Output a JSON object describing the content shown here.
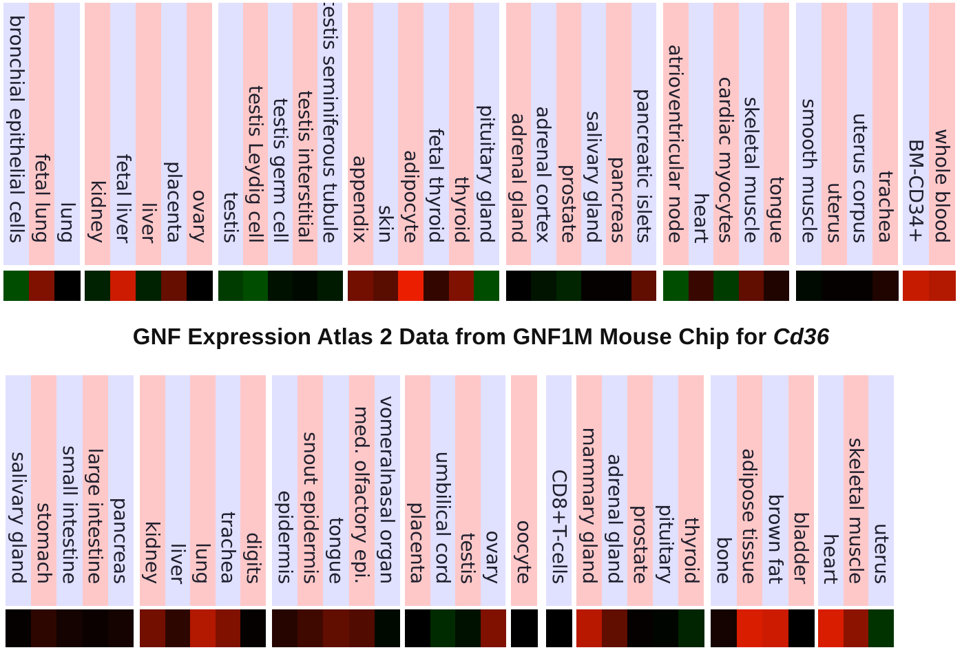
{
  "chart_data": {
    "type": "heatmap",
    "title": {
      "prefix": "GNF Expression Atlas 2 Data from GNF1M Mouse Chip for ",
      "gene": "Cd36"
    },
    "color_scale": {
      "low": "#00aa00",
      "mid": "#000000",
      "high": "#ff2200"
    },
    "column_colors": {
      "pink": "#ffc8c8",
      "blue": "#e0e0ff"
    },
    "rows": [
      {
        "groups": [
          {
            "tissues": [
              {
                "name": "bronchial epithelial cells",
                "value": -0.45
              },
              {
                "name": "fetal lung",
                "value": 0.5
              },
              {
                "name": "lung",
                "value": 0.0
              }
            ]
          },
          {
            "tissues": [
              {
                "name": "kidney",
                "value": -0.2
              },
              {
                "name": "fetal liver",
                "value": 0.8
              },
              {
                "name": "liver",
                "value": -0.2
              },
              {
                "name": "placenta",
                "value": 0.4
              },
              {
                "name": "ovary",
                "value": 0.0
              }
            ]
          },
          {
            "tissues": [
              {
                "name": "testis",
                "value": -0.35
              },
              {
                "name": "testis Leydig cell",
                "value": -0.45
              },
              {
                "name": "testis germ cell",
                "value": -0.1
              },
              {
                "name": "testis interstitial",
                "value": -0.05
              },
              {
                "name": "testis seminiferous tubule",
                "value": -0.15
              }
            ]
          },
          {
            "tissues": [
              {
                "name": "appendix",
                "value": 0.45
              },
              {
                "name": "skin",
                "value": 0.35
              },
              {
                "name": "adipocyte",
                "value": 0.92
              },
              {
                "name": "fetal thyroid",
                "value": 0.2
              },
              {
                "name": "thyroid",
                "value": 0.5
              },
              {
                "name": "pituitary gland",
                "value": -0.45
              }
            ]
          },
          {
            "tissues": [
              {
                "name": "adrenal gland",
                "value": 0.0
              },
              {
                "name": "adrenal cortex",
                "value": -0.12
              },
              {
                "name": "prostate",
                "value": -0.22
              },
              {
                "name": "salivary gland",
                "value": 0.02
              },
              {
                "name": "pancreas",
                "value": 0.02
              },
              {
                "name": "pancreatic islets",
                "value": 0.38
              }
            ]
          },
          {
            "tissues": [
              {
                "name": "atrioventricular node",
                "value": -0.45
              },
              {
                "name": "heart",
                "value": 0.22
              },
              {
                "name": "cardiac myocytes",
                "value": -0.35
              },
              {
                "name": "skeletal muscle",
                "value": 0.38
              },
              {
                "name": "tongue",
                "value": 0.12
              }
            ]
          },
          {
            "tissues": [
              {
                "name": "smooth muscle",
                "value": -0.06
              },
              {
                "name": "uterus",
                "value": 0.02
              },
              {
                "name": "uterus corpus",
                "value": 0.02
              },
              {
                "name": "trachea",
                "value": 0.12
              }
            ]
          },
          {
            "tissues": [
              {
                "name": "BM-CD34+",
                "value": 0.78
              },
              {
                "name": "whole blood",
                "value": 0.7
              }
            ]
          }
        ]
      },
      {
        "groups": [
          {
            "tissues": [
              {
                "name": "salivary gland",
                "value": 0.02
              },
              {
                "name": "stomach",
                "value": 0.18
              },
              {
                "name": "small intestine",
                "value": 0.08
              },
              {
                "name": "large intestine",
                "value": 0.04
              },
              {
                "name": "pancreas",
                "value": 0.08
              }
            ]
          },
          {
            "tissues": [
              {
                "name": "kidney",
                "value": 0.45
              },
              {
                "name": "liver",
                "value": 0.18
              },
              {
                "name": "lung",
                "value": 0.7
              },
              {
                "name": "trachea",
                "value": 0.5
              },
              {
                "name": "digits",
                "value": 0.02
              }
            ]
          },
          {
            "tissues": [
              {
                "name": "epidermis",
                "value": 0.15
              },
              {
                "name": "snout epidermis",
                "value": 0.25
              },
              {
                "name": "tongue",
                "value": 0.38
              },
              {
                "name": "med. olfactory epi.",
                "value": 0.32
              },
              {
                "name": "vomeralnasal organ",
                "value": -0.05
              }
            ]
          },
          {
            "tissues": [
              {
                "name": "placenta",
                "value": 0.0
              },
              {
                "name": "umbilical cord",
                "value": -0.25
              },
              {
                "name": "testis",
                "value": -0.1
              },
              {
                "name": "ovary",
                "value": 0.5
              }
            ]
          },
          {
            "tissues": [
              {
                "name": "oocyte",
                "value": 0.0
              }
            ]
          },
          {
            "tissues": [
              {
                "name": "CD8+T-cells",
                "value": 0.0
              }
            ]
          },
          {
            "tissues": [
              {
                "name": "mammary gland",
                "value": 0.72
              },
              {
                "name": "adrenal gland",
                "value": 0.38
              },
              {
                "name": "prostate",
                "value": 0.02
              },
              {
                "name": "pituitary",
                "value": -0.03
              },
              {
                "name": "thyroid",
                "value": -0.22
              }
            ]
          },
          {
            "tissues": [
              {
                "name": "bone",
                "value": 0.08
              },
              {
                "name": "adipose tissue",
                "value": 0.85
              },
              {
                "name": "brown fat",
                "value": 0.8
              },
              {
                "name": "bladder",
                "value": 0.0
              }
            ]
          },
          {
            "tissues": [
              {
                "name": "heart",
                "value": 0.85
              },
              {
                "name": "skeletal muscle",
                "value": 0.55
              },
              {
                "name": "uterus",
                "value": -0.3
              }
            ]
          }
        ]
      }
    ]
  }
}
